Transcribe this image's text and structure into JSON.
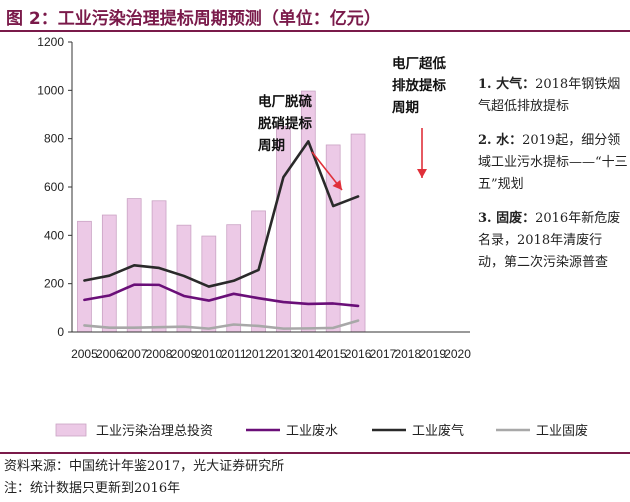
{
  "title": "图 2：工业污染治理提标周期预测（单位：亿元）",
  "colors": {
    "bar_fill": "#ecc9e6",
    "bar_stroke": "#caa3c4",
    "water": "#6a0f78",
    "gas": "#2a2a2a",
    "solid": "#a8a8a8",
    "arrow": "#e0303a",
    "accent": "#7a1a4a"
  },
  "chart_data": {
    "type": "bar",
    "categories": [
      "2005",
      "2006",
      "2007",
      "2008",
      "2009",
      "2010",
      "2011",
      "2012",
      "2013",
      "2014",
      "2015",
      "2016",
      "2017",
      "2018",
      "2019",
      "2020"
    ],
    "ylim": [
      0,
      1200
    ],
    "yticks": [
      0,
      200,
      400,
      600,
      800,
      1000,
      1200
    ],
    "series": [
      {
        "name": "工业污染治理总投资",
        "kind": "bar",
        "values": [
          458,
          484,
          552,
          543,
          442,
          397,
          444,
          501,
          850,
          997,
          774,
          819,
          null,
          null,
          null,
          null
        ]
      },
      {
        "name": "工业废水",
        "kind": "line",
        "values": [
          133,
          151,
          196,
          195,
          149,
          130,
          158,
          140,
          124,
          116,
          118,
          108,
          null,
          null,
          null,
          null
        ]
      },
      {
        "name": "工业废气",
        "kind": "line",
        "values": [
          213,
          233,
          276,
          265,
          232,
          188,
          212,
          257,
          641,
          789,
          521,
          561,
          null,
          null,
          null,
          null
        ]
      },
      {
        "name": "工业固废",
        "kind": "line",
        "values": [
          27,
          18,
          18,
          20,
          22,
          14,
          31,
          25,
          14,
          15,
          17,
          47,
          null,
          null,
          null,
          null
        ]
      }
    ],
    "annotations": [
      {
        "lines": [
          "电厂脱硫",
          "脱硝提标",
          "周期"
        ]
      },
      {
        "lines": [
          "电厂超低",
          "排放提标",
          "周期"
        ]
      }
    ],
    "legend_placement": "bottom"
  },
  "notes": [
    {
      "head": "1. 大气：",
      "text": "2018年钢铁烟气超低排放提标"
    },
    {
      "head": "2. 水：",
      "text": "2019起，细分领域工业污水提标——“十三五”规划"
    },
    {
      "head": "3. 固废：",
      "text": "2016年新危废名录，2018年清废行动，第二次污染源普查"
    }
  ],
  "source": "资料来源：中国统计年鉴2017，光大证券研究所",
  "footnote": "注：统计数据只更新到2016年"
}
